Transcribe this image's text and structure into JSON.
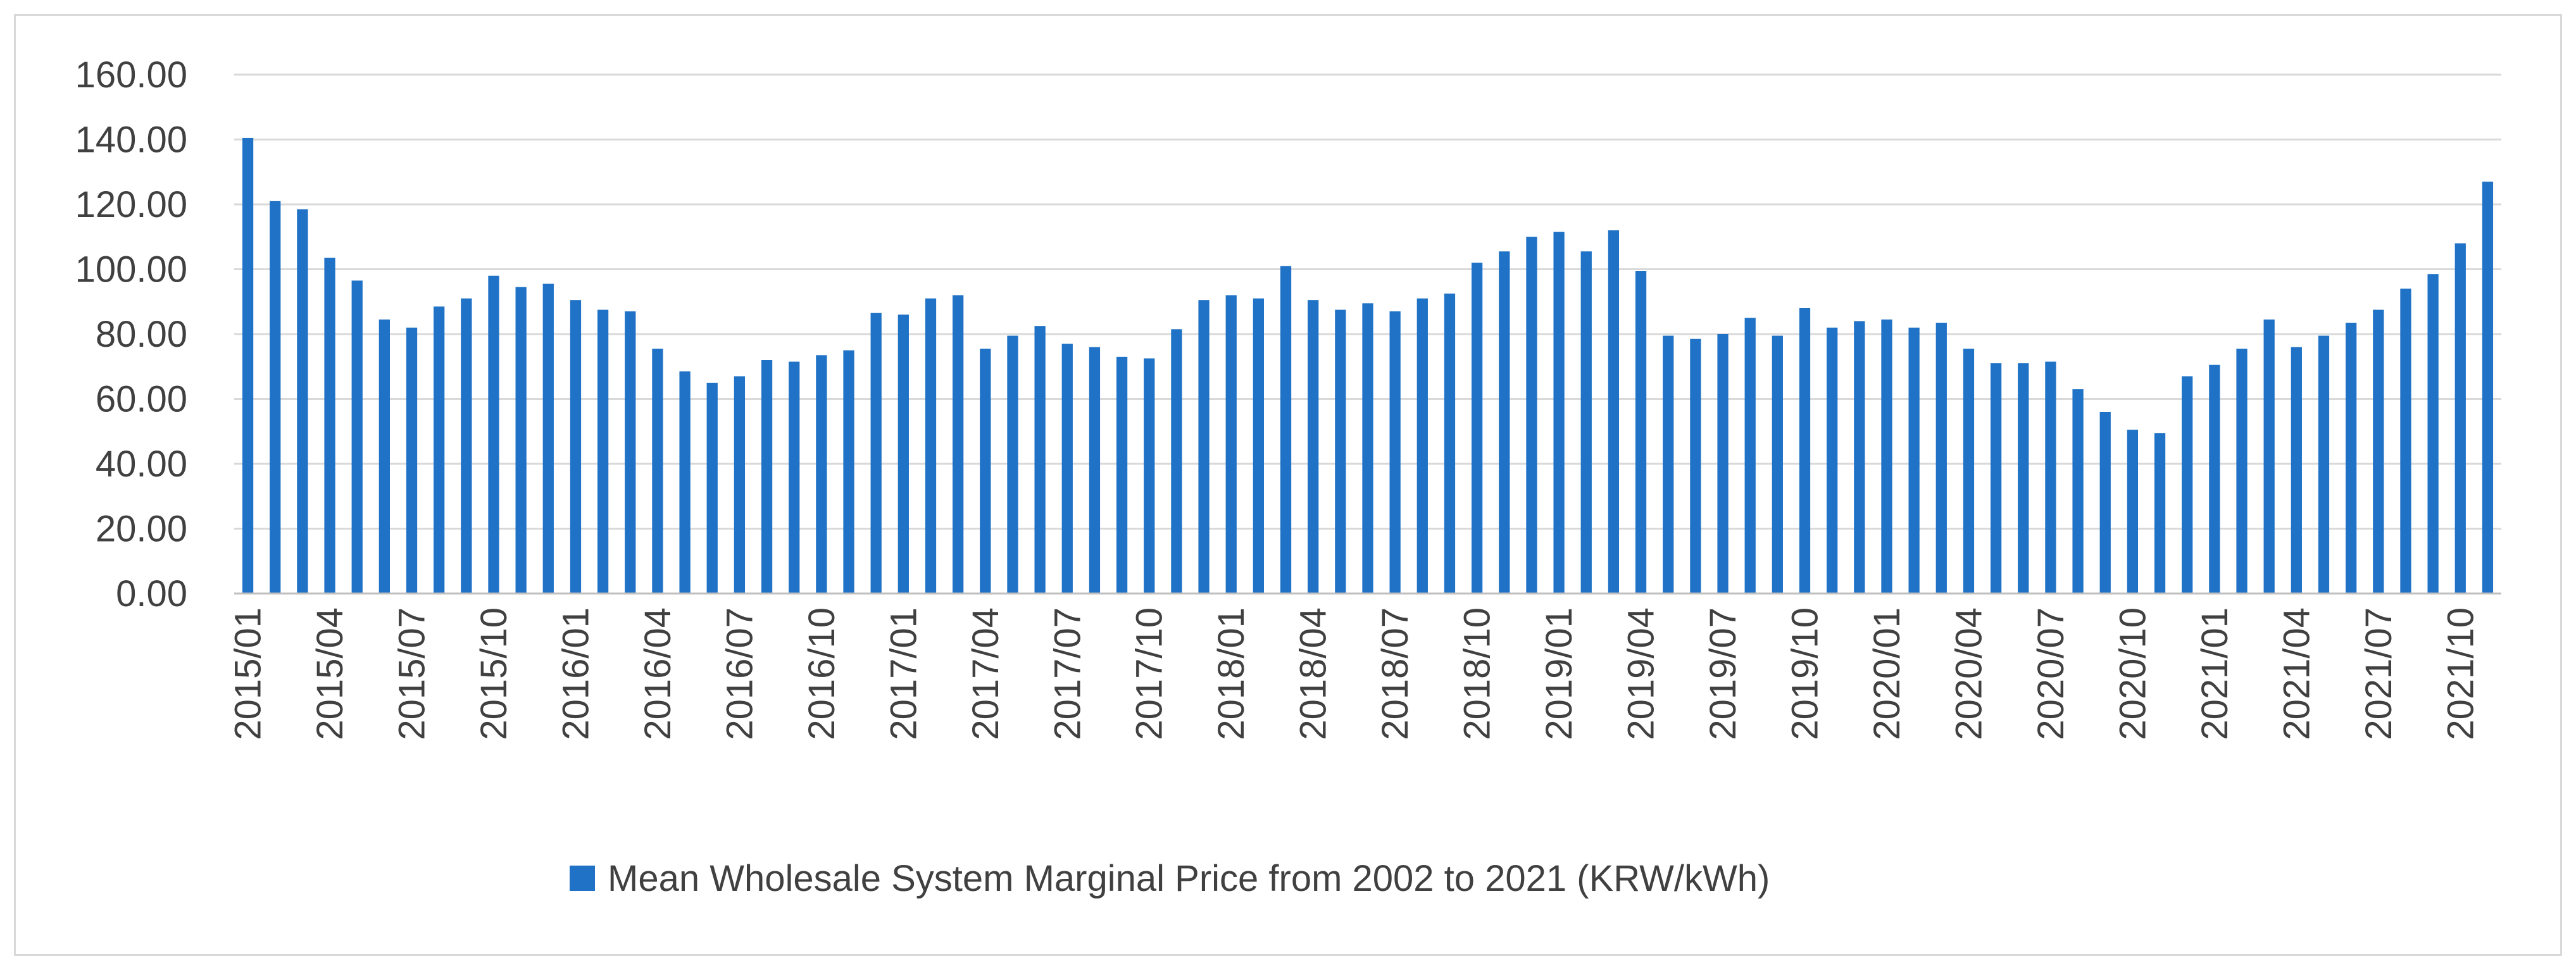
{
  "chart_data": {
    "type": "bar",
    "title": "",
    "xlabel": "",
    "ylabel": "",
    "ylim": [
      0,
      160
    ],
    "yticks": [
      "0.00",
      "20.00",
      "40.00",
      "60.00",
      "80.00",
      "100.00",
      "120.00",
      "140.00",
      "160.00"
    ],
    "ytick_values": [
      0,
      20,
      40,
      60,
      80,
      100,
      120,
      140,
      160
    ],
    "grid": true,
    "legend_position": "bottom",
    "bar_color": "#1f72c6",
    "grid_color": "#d9d9d9",
    "axis_color": "#bfbfbf",
    "text_color": "#404040",
    "categories": [
      "2015/01",
      "2015/02",
      "2015/03",
      "2015/04",
      "2015/05",
      "2015/06",
      "2015/07",
      "2015/08",
      "2015/09",
      "2015/10",
      "2015/11",
      "2015/12",
      "2016/01",
      "2016/02",
      "2016/03",
      "2016/04",
      "2016/05",
      "2016/06",
      "2016/07",
      "2016/08",
      "2016/09",
      "2016/10",
      "2016/11",
      "2016/12",
      "2017/01",
      "2017/02",
      "2017/03",
      "2017/04",
      "2017/05",
      "2017/06",
      "2017/07",
      "2017/08",
      "2017/09",
      "2017/10",
      "2017/11",
      "2017/12",
      "2018/01",
      "2018/02",
      "2018/03",
      "2018/04",
      "2018/05",
      "2018/06",
      "2018/07",
      "2018/08",
      "2018/09",
      "2018/10",
      "2018/11",
      "2018/12",
      "2019/01",
      "2019/02",
      "2019/03",
      "2019/04",
      "2019/05",
      "2019/06",
      "2019/07",
      "2019/08",
      "2019/09",
      "2019/10",
      "2019/11",
      "2019/12",
      "2020/01",
      "2020/02",
      "2020/03",
      "2020/04",
      "2020/05",
      "2020/06",
      "2020/07",
      "2020/08",
      "2020/09",
      "2020/10",
      "2020/11",
      "2020/12",
      "2021/01",
      "2021/02",
      "2021/03",
      "2021/04",
      "2021/05",
      "2021/06",
      "2021/07",
      "2021/08",
      "2021/09",
      "2021/10",
      "2021/11"
    ],
    "visible_tick_labels": [
      "2015/01",
      "2015/04",
      "2015/07",
      "2015/10",
      "2016/01",
      "2016/04",
      "2016/07",
      "2016/10",
      "2017/01",
      "2017/04",
      "2017/07",
      "2017/10",
      "2018/01",
      "2018/04",
      "2018/07",
      "2018/10",
      "2019/01",
      "2019/04",
      "2019/07",
      "2019/10",
      "2020/01",
      "2020/04",
      "2020/07",
      "2020/10",
      "2021/01",
      "2021/04",
      "2021/07",
      "2021/10"
    ],
    "series": [
      {
        "name": "Mean Wholesale System Marginal Price from 2002 to 2021 (KRW/kWh)",
        "values": [
          140.5,
          121,
          118.5,
          103.5,
          96.5,
          84.5,
          82,
          88.5,
          91,
          98,
          94.5,
          95.5,
          90.5,
          87.5,
          87,
          75.5,
          68.5,
          65,
          67,
          72,
          71.5,
          73.5,
          75,
          86.5,
          86,
          91,
          92,
          75.5,
          79.5,
          82.5,
          77,
          76,
          73,
          72.5,
          81.5,
          90.5,
          92,
          91,
          101,
          90.5,
          87.5,
          89.5,
          87,
          91,
          92.5,
          102,
          105.5,
          110,
          111.5,
          105.5,
          112,
          99.5,
          79.5,
          78.5,
          80,
          85,
          79.5,
          88,
          82,
          84,
          84.5,
          82,
          83.5,
          75.5,
          71,
          71,
          71.5,
          63,
          56,
          50.5,
          49.5,
          67,
          70.5,
          75.5,
          84.5,
          76,
          79.5,
          83.5,
          87.5,
          94,
          98.5,
          108,
          127
        ]
      }
    ]
  }
}
